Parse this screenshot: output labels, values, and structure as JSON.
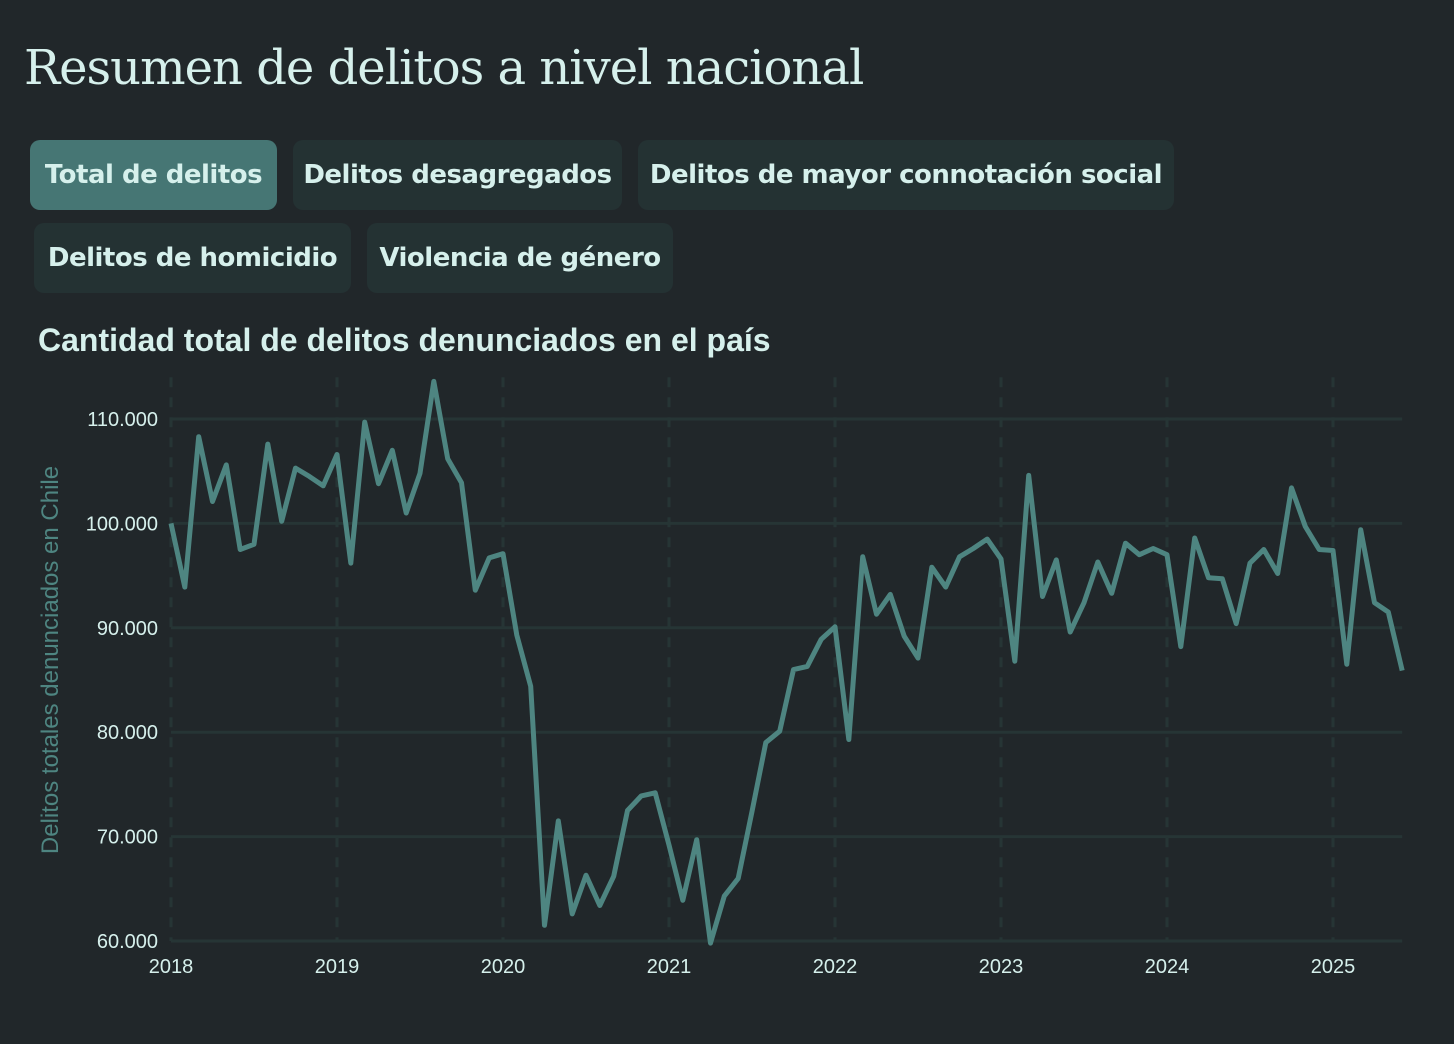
{
  "page": {
    "title": "Resumen de delitos a nivel nacional"
  },
  "tabs": [
    {
      "label": "Total de delitos",
      "active": true
    },
    {
      "label": "Delitos desagregados",
      "active": false
    },
    {
      "label": "Delitos de mayor connotación social",
      "active": false
    },
    {
      "label": "Delitos de homicidio",
      "active": false
    },
    {
      "label": "Violencia de género",
      "active": false
    }
  ],
  "colors": {
    "background": "#21272a",
    "line": "#4e8581",
    "active_tab": "#467674",
    "inactive_tab": "#243233",
    "text": "#d6f0ec",
    "grid": "#263535"
  },
  "chart_data": {
    "type": "line",
    "title": "Cantidad total de delitos denunciados en el país",
    "xlabel": "",
    "ylabel": "Delitos totales denunciados en Chile",
    "ylim": [
      60000,
      114000
    ],
    "yticks": [
      "60.000",
      "70.000",
      "80.000",
      "90.000",
      "100.000",
      "110.000"
    ],
    "ytick_values": [
      60000,
      70000,
      80000,
      90000,
      100000,
      110000
    ],
    "xticks": [
      "2018",
      "2019",
      "2020",
      "2021",
      "2022",
      "2023",
      "2024",
      "2025"
    ],
    "grid": true,
    "x_start": "2018-01",
    "x_end": "2025-06",
    "x_frequency": "monthly",
    "values": [
      100000,
      93900,
      108300,
      102100,
      105600,
      97500,
      98000,
      107600,
      100200,
      105300,
      104500,
      103600,
      106600,
      96200,
      109700,
      103800,
      107000,
      101000,
      104800,
      113600,
      106200,
      103900,
      93600,
      96700,
      97100,
      89300,
      84400,
      61500,
      71500,
      62600,
      66300,
      63400,
      66200,
      72500,
      73900,
      74200,
      69200,
      63900,
      69700,
      59800,
      64300,
      66000,
      72400,
      79000,
      80100,
      86000,
      86300,
      88900,
      90100,
      79300,
      96800,
      91300,
      93200,
      89200,
      87100,
      95800,
      93900,
      96800,
      97600,
      98500,
      96600,
      86800,
      104600,
      93000,
      96500,
      89600,
      92400,
      96300,
      93300,
      98100,
      97000,
      97600,
      97000,
      88200,
      98600,
      94800,
      94700,
      90400,
      96200,
      97500,
      95200,
      103400,
      99700,
      97500,
      97400,
      86500,
      99400,
      92400,
      91500,
      85900
    ]
  }
}
